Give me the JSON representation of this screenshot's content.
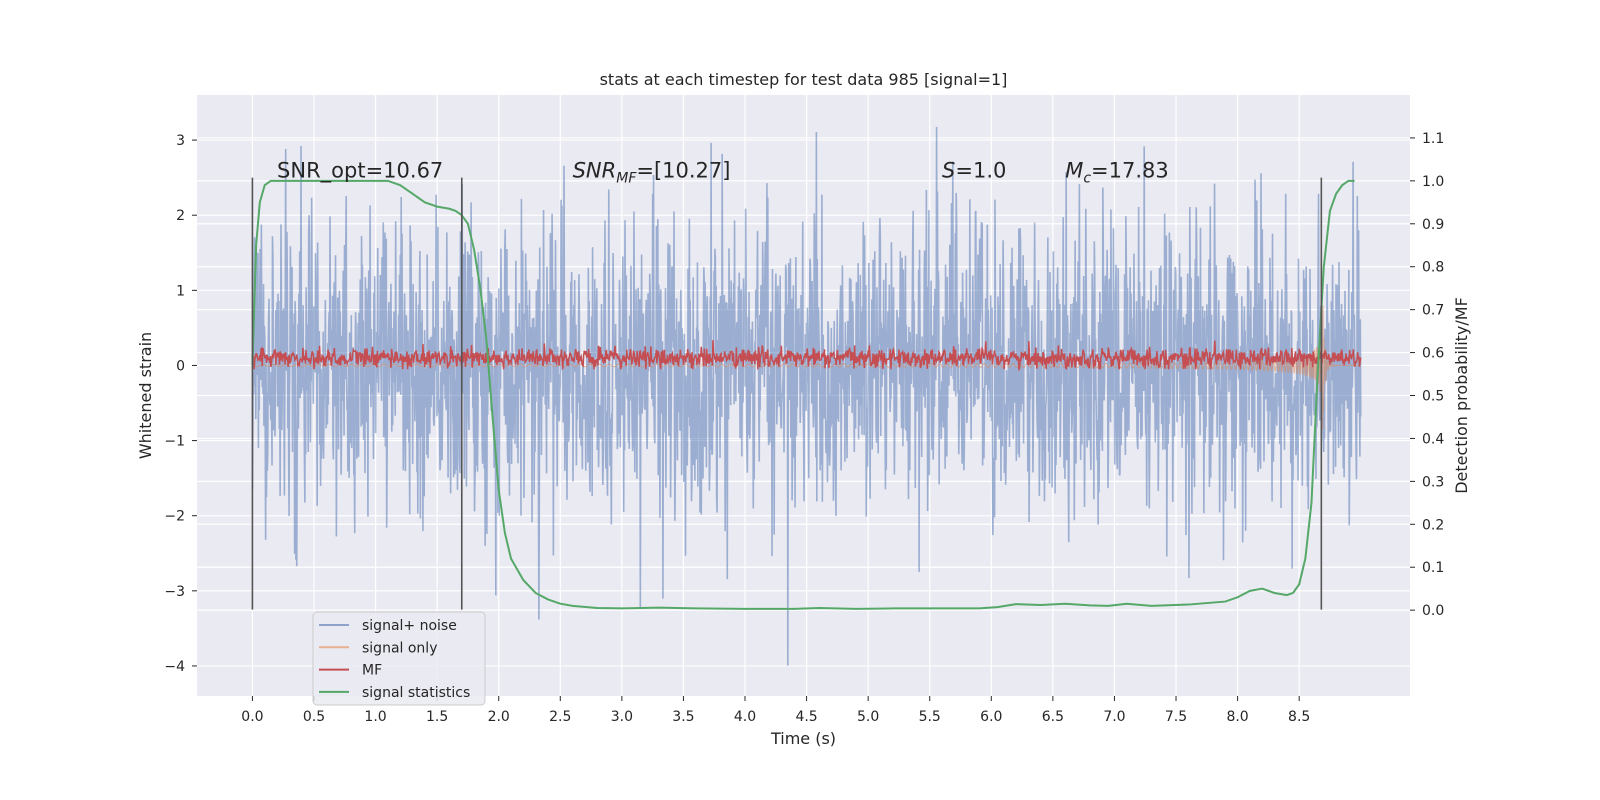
{
  "chart_data": {
    "type": "line",
    "title": "stats at each timestep for test data 985 [signal=1]",
    "xlabel": "Time (s)",
    "ylabel": "Whitened strain",
    "y2label": "Detection probability/MF",
    "xlim": [
      -0.45,
      9.4
    ],
    "ylim": [
      -4.4,
      3.6
    ],
    "y2lim": [
      -0.2,
      1.2
    ],
    "x_ticks": [
      0.0,
      0.5,
      1.0,
      1.5,
      2.0,
      2.5,
      3.0,
      3.5,
      4.0,
      4.5,
      5.0,
      5.5,
      6.0,
      6.5,
      7.0,
      7.5,
      8.0,
      8.5
    ],
    "x_tick_labels": [
      "0.0",
      "0.5",
      "1.0",
      "1.5",
      "2.0",
      "2.5",
      "3.0",
      "3.5",
      "4.0",
      "4.5",
      "5.0",
      "5.5",
      "6.0",
      "6.5",
      "7.0",
      "7.5",
      "8.0",
      "8.5"
    ],
    "y_ticks": [
      3,
      2,
      1,
      0,
      -1,
      -2,
      -3,
      -4
    ],
    "y_tick_labels": [
      "3",
      "2",
      "1",
      "0",
      "−1",
      "−2",
      "−3",
      "−4"
    ],
    "y2_ticks": [
      1.1,
      1.0,
      0.9,
      0.8,
      0.7,
      0.6,
      0.5,
      0.4,
      0.3,
      0.2,
      0.1,
      0.0
    ],
    "y2_tick_labels": [
      "1.1",
      "1.0",
      "0.9",
      "0.8",
      "0.7",
      "0.6",
      "0.5",
      "0.4",
      "0.3",
      "0.2",
      "0.1",
      "0.0"
    ],
    "grid": true,
    "legend_placement": "lower-left",
    "legend": [
      "signal+ noise",
      "signal only",
      "MF",
      "signal statistics"
    ],
    "annotations": [
      {
        "x": 0.2,
        "y": 2.5,
        "text": "SNR_opt=10.67"
      },
      {
        "x": 2.6,
        "y": 2.5,
        "text": "SNR",
        "sub": "MF",
        "rest": "=[10.27]"
      },
      {
        "x": 5.6,
        "y": 2.5,
        "text": "S",
        "sub": "",
        "rest": "=1.0"
      },
      {
        "x": 6.6,
        "y": 2.5,
        "text": "M",
        "sub": "c",
        "rest": "=17.83"
      }
    ],
    "vlines": [
      0.0,
      1.7,
      8.68
    ],
    "vline_range": [
      -3.25,
      2.5
    ],
    "series": [
      {
        "name": "signal+ noise",
        "color": "#4c72b0",
        "opacity": 0.5,
        "axis": "left",
        "kind": "noise",
        "x_range": [
          0.0,
          9.0
        ],
        "typical_amplitude": 1.3,
        "max": 3.25,
        "min": -4.05
      },
      {
        "name": "signal only",
        "color": "#dd8452",
        "opacity": 0.5,
        "axis": "left",
        "kind": "chirp",
        "x_range": [
          0.0,
          9.0
        ],
        "peak_time": 8.68,
        "peak_amplitude": 1.85
      },
      {
        "name": "MF",
        "color": "#c44e52",
        "axis": "left",
        "kind": "mf",
        "x_range": [
          0.0,
          9.0
        ],
        "mean": 0.1,
        "spread": 0.15
      },
      {
        "name": "signal statistics",
        "color": "#55a868",
        "axis": "right",
        "x": [
          0.0,
          0.03,
          0.06,
          0.1,
          0.15,
          0.2,
          0.3,
          0.5,
          0.8,
          1.1,
          1.2,
          1.3,
          1.4,
          1.5,
          1.6,
          1.65,
          1.7,
          1.75,
          1.8,
          1.85,
          1.9,
          1.95,
          2.0,
          2.05,
          2.1,
          2.2,
          2.3,
          2.4,
          2.5,
          2.6,
          2.8,
          3.0,
          3.3,
          3.6,
          4.0,
          4.4,
          4.6,
          4.9,
          5.2,
          5.6,
          5.9,
          6.05,
          6.2,
          6.4,
          6.6,
          6.8,
          6.95,
          7.1,
          7.3,
          7.6,
          7.9,
          8.0,
          8.1,
          8.2,
          8.3,
          8.4,
          8.45,
          8.5,
          8.55,
          8.6,
          8.65,
          8.7,
          8.75,
          8.8,
          8.85,
          8.9,
          8.95
        ],
        "values": [
          0.57,
          0.85,
          0.95,
          0.99,
          1.0,
          1.0,
          1.0,
          1.0,
          1.0,
          1.0,
          0.99,
          0.97,
          0.95,
          0.94,
          0.935,
          0.93,
          0.92,
          0.9,
          0.84,
          0.75,
          0.63,
          0.45,
          0.28,
          0.18,
          0.12,
          0.07,
          0.04,
          0.025,
          0.015,
          0.01,
          0.005,
          0.004,
          0.006,
          0.004,
          0.003,
          0.003,
          0.005,
          0.003,
          0.004,
          0.004,
          0.004,
          0.007,
          0.014,
          0.012,
          0.015,
          0.011,
          0.01,
          0.015,
          0.01,
          0.013,
          0.02,
          0.03,
          0.045,
          0.05,
          0.04,
          0.035,
          0.04,
          0.06,
          0.12,
          0.25,
          0.55,
          0.8,
          0.93,
          0.97,
          0.99,
          1.0,
          1.0
        ]
      }
    ]
  }
}
